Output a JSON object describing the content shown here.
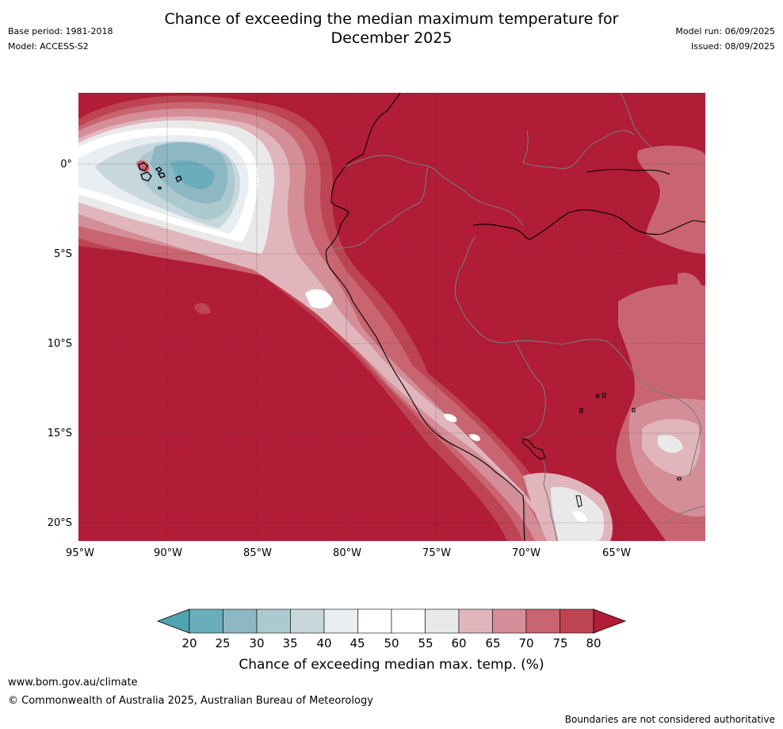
{
  "title_line1": "Chance of exceeding the median maximum temperature for",
  "title_line2": "December 2025",
  "meta": {
    "base_period": "Base period: 1981-2018",
    "model": "Model: ACCESS-S2",
    "model_run": "Model run: 06/09/2025",
    "issued": "Issued: 08/09/2025"
  },
  "map": {
    "lat_labels": [
      "0°",
      "5°S",
      "10°S",
      "15°S",
      "20°S"
    ],
    "lon_labels": [
      "95°W",
      "90°W",
      "85°W",
      "80°W",
      "75°W",
      "70°W",
      "65°W"
    ],
    "colors": {
      "ocean_base": "#b11c36",
      "land_base": "#b11c36",
      "coast": "#000000",
      "borders": "#7a7a7a"
    }
  },
  "colorbar": {
    "labels": [
      "20",
      "25",
      "30",
      "35",
      "40",
      "45",
      "50",
      "55",
      "60",
      "65",
      "70",
      "75",
      "80"
    ],
    "colors": [
      "#4fa3b2",
      "#6aadbb",
      "#8db7c3",
      "#acc9cf",
      "#c7d7dc",
      "#e8eef1",
      "#ffffff",
      "#ffffff",
      "#e9e9ea",
      "#e0b6bc",
      "#d48e98",
      "#c96571",
      "#bd4452",
      "#b11c36"
    ],
    "title": "Chance of exceeding median max. temp. (%)"
  },
  "footer": {
    "url": "www.bom.gov.au/climate",
    "copyright": "© Commonwealth of Australia 2025, Australian Bureau of Meteorology",
    "disclaimer": "Boundaries are not considered authoritative"
  }
}
